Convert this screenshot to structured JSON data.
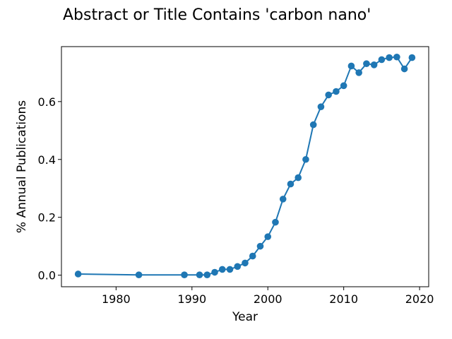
{
  "chart_data": {
    "type": "line",
    "title": "Abstract or Title Contains 'carbon nano'",
    "xlabel": "Year",
    "ylabel": "% Annual Publications",
    "xlim": [
      1972.8,
      2021.2
    ],
    "ylim": [
      -0.04,
      0.79
    ],
    "xticks": [
      1980,
      1990,
      2000,
      2010,
      2020
    ],
    "yticks": [
      0.0,
      0.2,
      0.4,
      0.6
    ],
    "ytick_labels": [
      "0.0",
      "0.2",
      "0.4",
      "0.6"
    ],
    "grid": false,
    "legend": false,
    "line_color": "#1f77b4",
    "marker": "circle",
    "series": [
      {
        "x": [
          1975,
          1983,
          1989,
          1991,
          1992,
          1993,
          1994,
          1995,
          1996,
          1997,
          1998,
          1999,
          2000,
          2001,
          2002,
          2003,
          2004,
          2005,
          2006,
          2007,
          2008,
          2009,
          2010,
          2011,
          2012,
          2013,
          2014,
          2015,
          2016,
          2017,
          2018,
          2019
        ],
        "y": [
          0.004,
          0.001,
          0.001,
          0.001,
          0.001,
          0.01,
          0.02,
          0.02,
          0.03,
          0.042,
          0.066,
          0.1,
          0.133,
          0.183,
          0.263,
          0.315,
          0.337,
          0.4,
          0.52,
          0.582,
          0.623,
          0.635,
          0.655,
          0.723,
          0.7,
          0.731,
          0.727,
          0.745,
          0.752,
          0.754,
          0.713,
          0.752
        ]
      }
    ]
  }
}
